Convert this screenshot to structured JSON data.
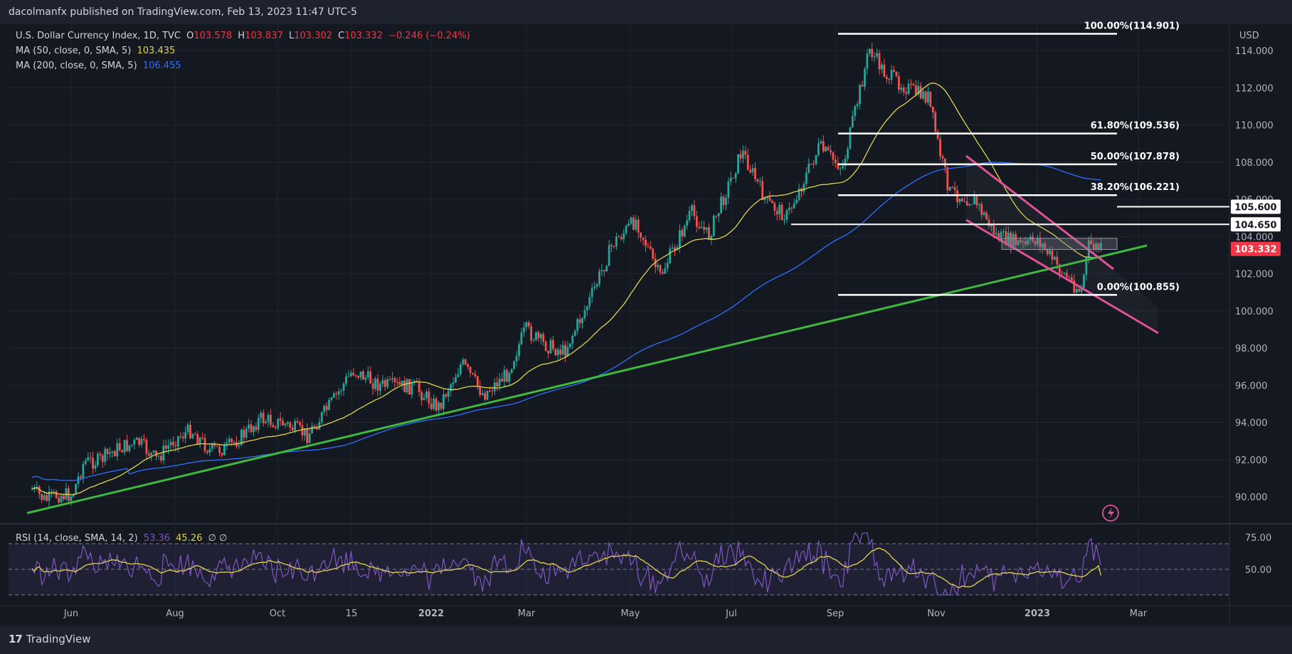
{
  "publisher": "dacolmanfx published on TradingView.com, Feb 13, 2023 11:47 UTC-5",
  "brand": "TradingView",
  "legend": {
    "symbol": "U.S. Dollar Currency Index, 1D, TVC",
    "o_label": "O",
    "o_value": "103.578",
    "h_label": "H",
    "h_value": "103.837",
    "l_label": "L",
    "l_value": "103.302",
    "c_label": "C",
    "c_value": "103.332",
    "change": "−0.246 (−0.24%)",
    "ma50_label": "MA (50, close, 0, SMA, 5)",
    "ma50_value": "103.435",
    "ma200_label": "MA (200, close, 0, SMA, 5)",
    "ma200_value": "106.455",
    "rsi_label": "RSI (14, close, SMA, 14, 2)",
    "rsi_value": "53.36",
    "rsi_ma_value": "45.26",
    "rsi_extra": "∅ ∅"
  },
  "colors": {
    "up": "#26a69a",
    "down": "#ef5350",
    "ma50": "#e2d34a",
    "ma200": "#2f6fff",
    "trendline": "#3fb83f",
    "channel": "#e05295",
    "rsi": "#7e57c2",
    "price_tag": "#f23645",
    "background": "#141821"
  },
  "chart_data": {
    "type": "candlestick",
    "title": "U.S. Dollar Currency Index, 1D, TVC",
    "currency_label": "USD",
    "y_ticks": [
      "114.000",
      "112.000",
      "110.000",
      "108.000",
      "106.000",
      "104.000",
      "102.000",
      "100.000",
      "98.000",
      "96.000",
      "94.000",
      "92.000",
      "90.000"
    ],
    "x_ticks": [
      "Jun",
      "Aug",
      "Oct",
      "15",
      "2022",
      "Mar",
      "May",
      "Jul",
      "Sep",
      "Nov",
      "2023",
      "Mar"
    ],
    "ylim": [
      88.6,
      116.2
    ],
    "price_path": [
      [
        "2021-05-17",
        90.4
      ],
      [
        "2021-05-25",
        89.8
      ],
      [
        "2021-06-01",
        90.1
      ],
      [
        "2021-06-10",
        90.1
      ],
      [
        "2021-06-17",
        91.9
      ],
      [
        "2021-06-25",
        91.9
      ],
      [
        "2021-07-07",
        92.6
      ],
      [
        "2021-07-20",
        92.9
      ],
      [
        "2021-07-30",
        92.0
      ],
      [
        "2021-08-10",
        93.1
      ],
      [
        "2021-08-20",
        93.6
      ],
      [
        "2021-08-31",
        92.5
      ],
      [
        "2021-09-10",
        92.6
      ],
      [
        "2021-09-22",
        93.5
      ],
      [
        "2021-09-30",
        94.2
      ],
      [
        "2021-10-15",
        93.9
      ],
      [
        "2021-10-28",
        93.3
      ],
      [
        "2021-11-12",
        95.1
      ],
      [
        "2021-11-24",
        96.8
      ],
      [
        "2021-12-10",
        96.0
      ],
      [
        "2021-12-31",
        95.9
      ],
      [
        "2022-01-14",
        94.8
      ],
      [
        "2022-01-28",
        97.2
      ],
      [
        "2022-02-10",
        95.5
      ],
      [
        "2022-02-24",
        96.6
      ],
      [
        "2022-03-07",
        99.0
      ],
      [
        "2022-03-18",
        98.2
      ],
      [
        "2022-03-30",
        97.8
      ],
      [
        "2022-04-14",
        100.5
      ],
      [
        "2022-04-28",
        103.6
      ],
      [
        "2022-05-12",
        104.9
      ],
      [
        "2022-05-26",
        101.8
      ],
      [
        "2022-06-14",
        105.3
      ],
      [
        "2022-06-24",
        104.0
      ],
      [
        "2022-07-14",
        108.6
      ],
      [
        "2022-07-29",
        105.8
      ],
      [
        "2022-08-10",
        105.1
      ],
      [
        "2022-08-29",
        108.8
      ],
      [
        "2022-09-12",
        107.7
      ],
      [
        "2022-09-28",
        114.1
      ],
      [
        "2022-10-07",
        112.8
      ],
      [
        "2022-10-24",
        111.8
      ],
      [
        "2022-11-02",
        111.5
      ],
      [
        "2022-11-10",
        108.1
      ],
      [
        "2022-11-15",
        106.4
      ],
      [
        "2022-11-30",
        105.9
      ],
      [
        "2022-12-13",
        104.0
      ],
      [
        "2022-12-30",
        103.5
      ],
      [
        "2023-01-06",
        103.9
      ],
      [
        "2023-01-18",
        102.4
      ],
      [
        "2023-02-01",
        101.0
      ],
      [
        "2023-02-06",
        103.6
      ],
      [
        "2023-02-13",
        103.3
      ]
    ],
    "series": [
      {
        "name": "MA (50, close, 0, SMA, 5)",
        "last_value": "103.435"
      },
      {
        "name": "MA (200, close, 0, SMA, 5)",
        "last_value": "106.455"
      }
    ],
    "fibonacci": [
      {
        "label": "100.00%(114.901)",
        "value": 114.901
      },
      {
        "label": "61.80%(109.536)",
        "value": 109.536
      },
      {
        "label": "50.00%(107.878)",
        "value": 107.878
      },
      {
        "label": "38.20%(106.221)",
        "value": 106.221
      },
      {
        "label": "0.00%(100.855)",
        "value": 100.855
      }
    ],
    "price_tags": [
      {
        "label": "105.600",
        "value": 105.6
      },
      {
        "label": "104.650",
        "value": 104.65
      },
      {
        "label": "103.332",
        "value": 103.332,
        "current": true
      }
    ],
    "rsi": {
      "y_ticks": [
        "75.00",
        "50.00"
      ],
      "band": [
        30,
        70
      ],
      "last_value": 53.36,
      "ma_last_value": 45.26
    }
  }
}
